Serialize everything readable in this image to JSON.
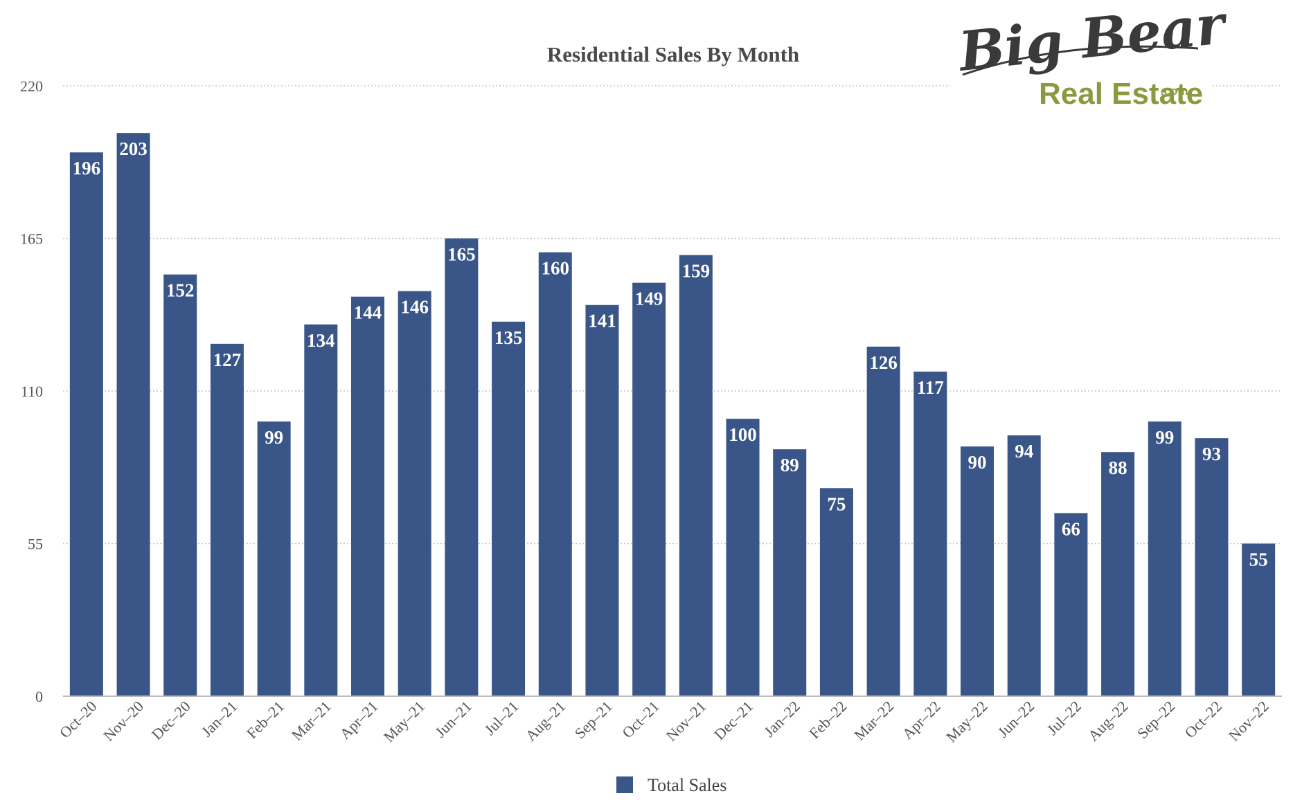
{
  "chart_data": {
    "type": "bar",
    "title": "Residential Sales By Month",
    "categories": [
      "Oct–20",
      "Nov–20",
      "Dec–20",
      "Jan–21",
      "Feb–21",
      "Mar–21",
      "Apr–21",
      "May–21",
      "Jun–21",
      "Jul–21",
      "Aug–21",
      "Sep–21",
      "Oct–21",
      "Nov–21",
      "Dec–21",
      "Jan–22",
      "Feb–22",
      "Mar–22",
      "Apr–22",
      "May–22",
      "Jun–22",
      "Jul–22",
      "Aug–22",
      "Sep–22",
      "Oct–22",
      "Nov–22"
    ],
    "series": [
      {
        "name": "Total Sales",
        "color": "#3a5689",
        "values": [
          196,
          203,
          152,
          127,
          99,
          134,
          144,
          146,
          165,
          135,
          160,
          141,
          149,
          159,
          100,
          89,
          75,
          126,
          117,
          90,
          94,
          66,
          88,
          99,
          93,
          55
        ]
      }
    ],
    "ylim": [
      0,
      220
    ],
    "yticks": [
      0,
      55,
      110,
      165,
      220
    ],
    "grid": true,
    "legend": "bottom-center",
    "data_labels": true
  },
  "logo": {
    "line1": "Big Bear",
    "line2": "Real Estate",
    "suffix": ".com"
  }
}
